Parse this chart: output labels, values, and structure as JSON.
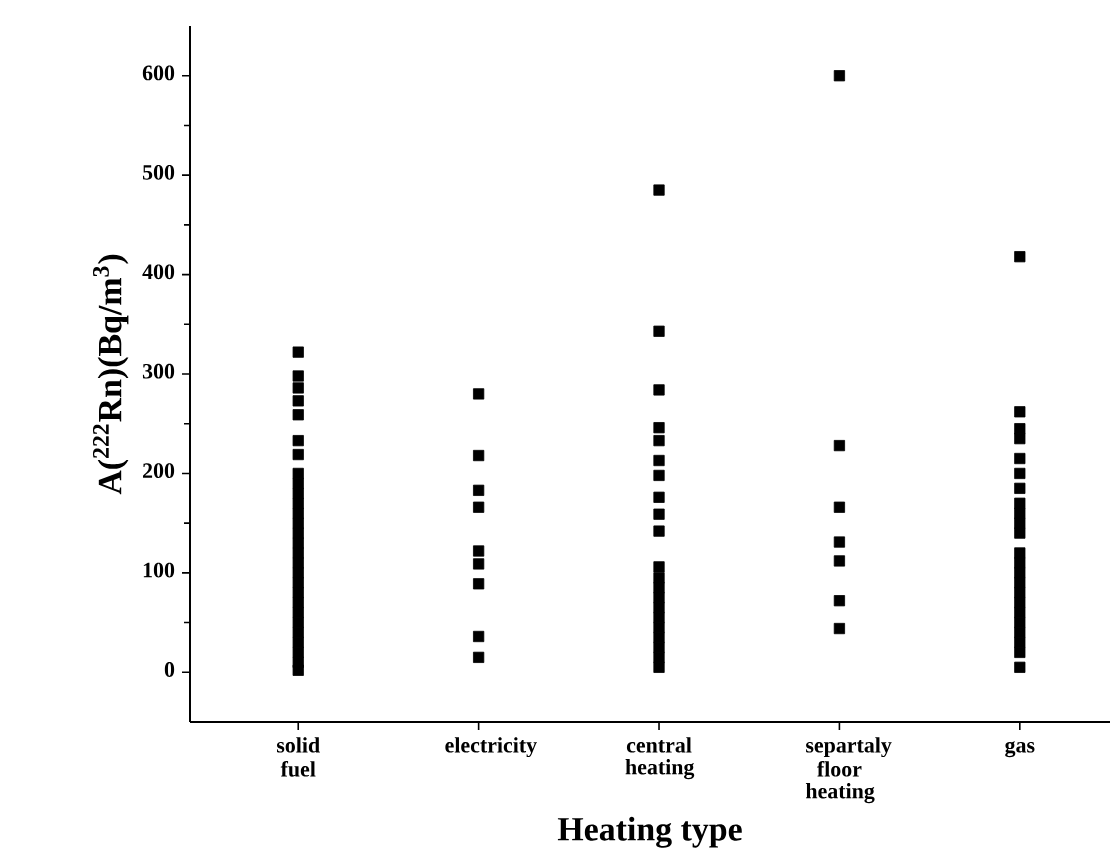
{
  "chart_data": {
    "type": "scatter",
    "xlabel": "Heating type",
    "ylabel": "A($^{222}$Rn)(Bq/m$^{3}$)",
    "categories": [
      "solid fuel",
      "electricity",
      "central heating",
      "separtaly floor heating",
      "gas"
    ],
    "ylim": [
      -50,
      650
    ],
    "yticks": [
      0,
      {
        "value": 50,
        "label": null
      },
      100,
      {
        "value": 150,
        "label": null
      },
      200,
      {
        "value": 250,
        "label": null
      },
      300,
      {
        "value": 350,
        "label": null
      },
      400,
      {
        "value": 450,
        "label": null
      },
      500,
      {
        "value": 550,
        "label": null
      },
      600
    ],
    "marker": "square",
    "grid": false,
    "series": [
      {
        "color": "#000000",
        "x": [
          "solid fuel",
          "solid fuel",
          "solid fuel",
          "solid fuel",
          "solid fuel",
          "solid fuel",
          "solid fuel",
          "solid fuel",
          "solid fuel",
          "solid fuel",
          "solid fuel",
          "solid fuel",
          "solid fuel",
          "solid fuel",
          "solid fuel",
          "solid fuel",
          "solid fuel",
          "solid fuel",
          "solid fuel",
          "solid fuel",
          "solid fuel",
          "solid fuel",
          "solid fuel",
          "solid fuel",
          "solid fuel",
          "solid fuel",
          "solid fuel",
          "solid fuel"
        ],
        "values": [
          322,
          298,
          286,
          273,
          259,
          233,
          219,
          200,
          190,
          180,
          170,
          160,
          150,
          140,
          130,
          120,
          110,
          100,
          90,
          80,
          70,
          60,
          50,
          40,
          30,
          20,
          10,
          2
        ]
      },
      {
        "color": "#000000",
        "x": [
          "electricity",
          "electricity",
          "electricity",
          "electricity",
          "electricity",
          "electricity",
          "electricity",
          "electricity",
          "electricity"
        ],
        "values": [
          280,
          218,
          183,
          166,
          122,
          109,
          89,
          36,
          15
        ]
      },
      {
        "color": "#000000",
        "x": [
          "central heating",
          "central heating",
          "central heating",
          "central heating",
          "central heating",
          "central heating",
          "central heating",
          "central heating",
          "central heating",
          "central heating",
          "central heating",
          "central heating",
          "central heating",
          "central heating",
          "central heating",
          "central heating",
          "central heating",
          "central heating",
          "central heating",
          "central heating",
          "central heating"
        ],
        "values": [
          485,
          343,
          284,
          246,
          233,
          213,
          198,
          176,
          159,
          142,
          106,
          95,
          85,
          75,
          65,
          55,
          45,
          35,
          25,
          15,
          5
        ]
      },
      {
        "color": "#000000",
        "x": [
          "separtaly floor heating",
          "separtaly floor heating",
          "separtaly floor heating",
          "separtaly floor heating",
          "separtaly floor heating",
          "separtaly floor heating",
          "separtaly floor heating"
        ],
        "values": [
          600,
          228,
          166,
          131,
          112,
          72,
          44
        ]
      },
      {
        "color": "#000000",
        "x": [
          "gas",
          "gas",
          "gas",
          "gas",
          "gas",
          "gas",
          "gas",
          "gas",
          "gas",
          "gas",
          "gas",
          "gas",
          "gas",
          "gas",
          "gas",
          "gas",
          "gas",
          "gas",
          "gas",
          "gas",
          "gas",
          "gas",
          "gas"
        ],
        "values": [
          418,
          262,
          245,
          235,
          215,
          200,
          185,
          170,
          160,
          150,
          140,
          120,
          110,
          100,
          90,
          80,
          70,
          60,
          50,
          40,
          30,
          20,
          5
        ]
      }
    ]
  }
}
